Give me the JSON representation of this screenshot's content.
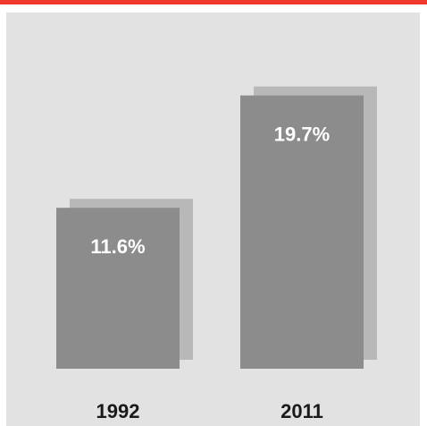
{
  "colors": {
    "accent": "#ee3a2c",
    "background": "#e2e2e2",
    "bar": "#8c8c8c",
    "bar_shadow": "#a9a9a9",
    "value_text": "#ffffff",
    "category_text": "#1a1a1a"
  },
  "chart_data": {
    "type": "bar",
    "categories": [
      "1992",
      "2011"
    ],
    "values": [
      11.6,
      19.7
    ],
    "value_labels": [
      "11.6%",
      "19.7%"
    ],
    "title": "",
    "xlabel": "",
    "ylabel": "",
    "ylim": [
      0,
      24
    ],
    "grid": false
  }
}
